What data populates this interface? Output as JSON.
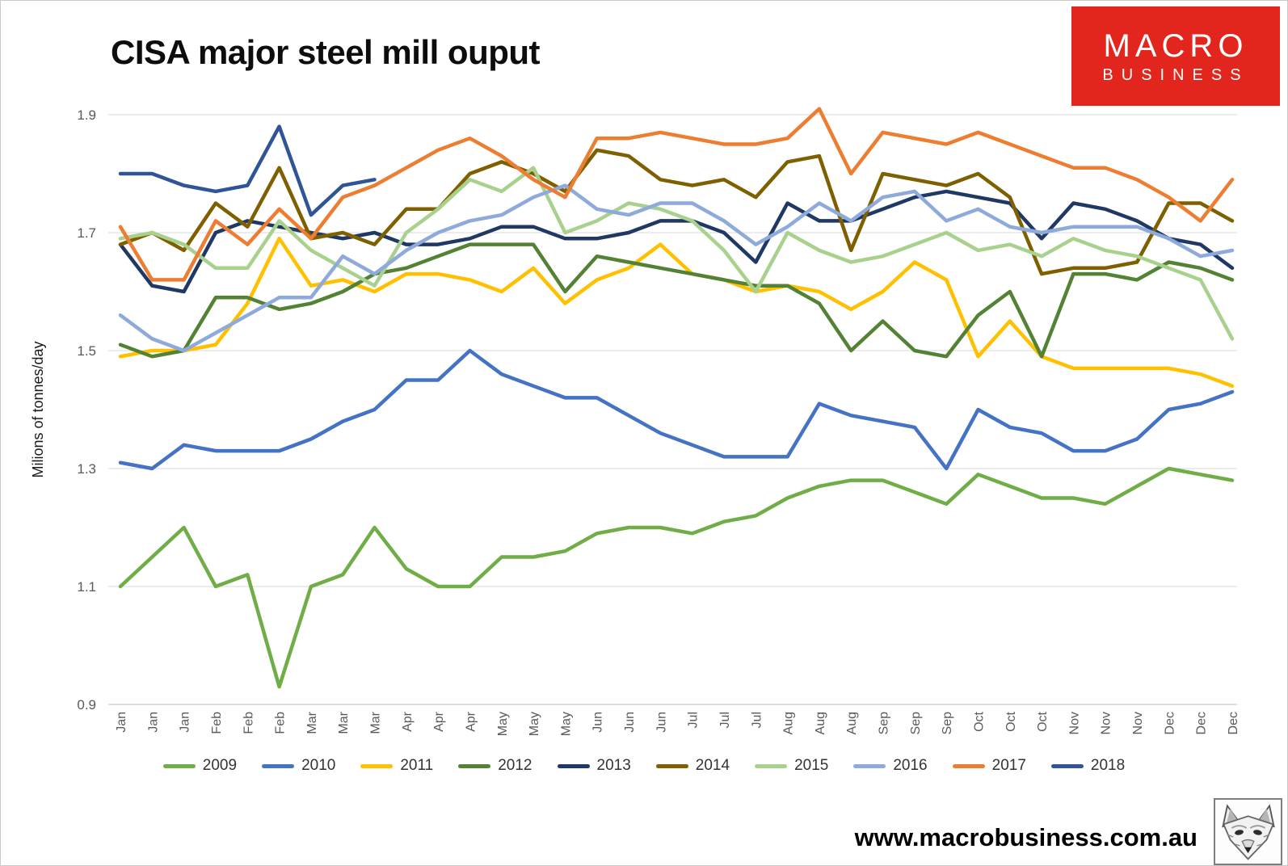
{
  "header": {
    "title": "CISA major steel mill ouput"
  },
  "branding": {
    "logo_line1": "MACRO",
    "logo_line2": "BUSINESS",
    "brand_red": "#E3261D",
    "fox_icon": "fox-sketch-logo"
  },
  "footer": {
    "url": "www.macrobusiness.com.au"
  },
  "chart_data": {
    "type": "line",
    "title": "CISA major steel mill ouput",
    "xlabel": "",
    "ylabel": "Milions of tonnes/day",
    "ylim": [
      0.9,
      1.9
    ],
    "yticks": [
      0.9,
      1.1,
      1.3,
      1.5,
      1.7,
      1.9
    ],
    "grid": true,
    "legend_position": "bottom",
    "x_labels": [
      "Jan",
      "Jan",
      "Jan",
      "Feb",
      "Feb",
      "Feb",
      "Mar",
      "Mar",
      "Mar",
      "Apr",
      "Apr",
      "Apr",
      "May",
      "May",
      "May",
      "Jun",
      "Jun",
      "Jun",
      "Jul",
      "Jul",
      "Jul",
      "Aug",
      "Aug",
      "Aug",
      "Sep",
      "Sep",
      "Sep",
      "Oct",
      "Oct",
      "Oct",
      "Nov",
      "Nov",
      "Nov",
      "Dec",
      "Dec",
      "Dec"
    ],
    "series": [
      {
        "name": "2009",
        "color": "#70AD47",
        "values": [
          1.1,
          1.15,
          1.2,
          1.1,
          1.12,
          0.93,
          1.1,
          1.12,
          1.2,
          1.13,
          1.1,
          1.1,
          1.15,
          1.15,
          1.16,
          1.19,
          1.2,
          1.2,
          1.19,
          1.21,
          1.22,
          1.25,
          1.27,
          1.28,
          1.28,
          1.26,
          1.24,
          1.29,
          1.27,
          1.25,
          1.25,
          1.24,
          1.27,
          1.3,
          1.29,
          1.28
        ]
      },
      {
        "name": "2010",
        "color": "#4472C4",
        "values": [
          1.31,
          1.3,
          1.34,
          1.33,
          1.33,
          1.33,
          1.35,
          1.38,
          1.4,
          1.45,
          1.45,
          1.5,
          1.46,
          1.44,
          1.42,
          1.42,
          1.39,
          1.36,
          1.34,
          1.32,
          1.32,
          1.32,
          1.41,
          1.39,
          1.38,
          1.37,
          1.3,
          1.4,
          1.37,
          1.36,
          1.33,
          1.33,
          1.35,
          1.4,
          1.41,
          1.43
        ]
      },
      {
        "name": "2011",
        "color": "#FFC000",
        "values": [
          1.49,
          1.5,
          1.5,
          1.51,
          1.58,
          1.69,
          1.61,
          1.62,
          1.6,
          1.63,
          1.63,
          1.62,
          1.6,
          1.64,
          1.58,
          1.62,
          1.64,
          1.68,
          1.63,
          1.62,
          1.6,
          1.61,
          1.6,
          1.57,
          1.6,
          1.65,
          1.62,
          1.49,
          1.55,
          1.49,
          1.47,
          1.47,
          1.47,
          1.47,
          1.46,
          1.44
        ]
      },
      {
        "name": "2012",
        "color": "#548235",
        "values": [
          1.51,
          1.49,
          1.5,
          1.59,
          1.59,
          1.57,
          1.58,
          1.6,
          1.63,
          1.64,
          1.66,
          1.68,
          1.68,
          1.68,
          1.6,
          1.66,
          1.65,
          1.64,
          1.63,
          1.62,
          1.61,
          1.61,
          1.58,
          1.5,
          1.55,
          1.5,
          1.49,
          1.56,
          1.6,
          1.49,
          1.63,
          1.63,
          1.62,
          1.65,
          1.64,
          1.62
        ]
      },
      {
        "name": "2013",
        "color": "#203864",
        "values": [
          1.68,
          1.61,
          1.6,
          1.7,
          1.72,
          1.71,
          1.7,
          1.69,
          1.7,
          1.68,
          1.68,
          1.69,
          1.71,
          1.71,
          1.69,
          1.69,
          1.7,
          1.72,
          1.72,
          1.7,
          1.65,
          1.75,
          1.72,
          1.72,
          1.74,
          1.76,
          1.77,
          1.76,
          1.75,
          1.69,
          1.75,
          1.74,
          1.72,
          1.69,
          1.68,
          1.64
        ]
      },
      {
        "name": "2014",
        "color": "#7F6000",
        "values": [
          1.68,
          1.7,
          1.67,
          1.75,
          1.71,
          1.81,
          1.69,
          1.7,
          1.68,
          1.74,
          1.74,
          1.8,
          1.82,
          1.8,
          1.77,
          1.84,
          1.83,
          1.79,
          1.78,
          1.79,
          1.76,
          1.82,
          1.83,
          1.67,
          1.8,
          1.79,
          1.78,
          1.8,
          1.76,
          1.63,
          1.64,
          1.64,
          1.65,
          1.75,
          1.75,
          1.72
        ]
      },
      {
        "name": "2015",
        "color": "#A9D18E",
        "values": [
          1.69,
          1.7,
          1.68,
          1.64,
          1.64,
          1.72,
          1.67,
          1.64,
          1.61,
          1.7,
          1.74,
          1.79,
          1.77,
          1.81,
          1.7,
          1.72,
          1.75,
          1.74,
          1.72,
          1.67,
          1.6,
          1.7,
          1.67,
          1.65,
          1.66,
          1.68,
          1.7,
          1.67,
          1.68,
          1.66,
          1.69,
          1.67,
          1.66,
          1.64,
          1.62,
          1.52
        ]
      },
      {
        "name": "2016",
        "color": "#8EAADB",
        "values": [
          1.56,
          1.52,
          1.5,
          1.53,
          1.56,
          1.59,
          1.59,
          1.66,
          1.63,
          1.67,
          1.7,
          1.72,
          1.73,
          1.76,
          1.78,
          1.74,
          1.73,
          1.75,
          1.75,
          1.72,
          1.68,
          1.71,
          1.75,
          1.72,
          1.76,
          1.77,
          1.72,
          1.74,
          1.71,
          1.7,
          1.71,
          1.71,
          1.71,
          1.69,
          1.66,
          1.67
        ]
      },
      {
        "name": "2017",
        "color": "#ED7D31",
        "values": [
          1.71,
          1.62,
          1.62,
          1.72,
          1.68,
          1.74,
          1.69,
          1.76,
          1.78,
          1.81,
          1.84,
          1.86,
          1.83,
          1.79,
          1.76,
          1.86,
          1.86,
          1.87,
          1.86,
          1.85,
          1.85,
          1.86,
          1.91,
          1.8,
          1.87,
          1.86,
          1.85,
          1.87,
          1.85,
          1.83,
          1.81,
          1.81,
          1.79,
          1.76,
          1.72,
          1.79
        ]
      },
      {
        "name": "2018",
        "color": "#2F5597",
        "values": [
          1.8,
          1.8,
          1.78,
          1.77,
          1.78,
          1.88,
          1.73,
          1.78,
          1.79,
          null,
          null,
          null,
          null,
          null,
          null,
          null,
          null,
          null,
          null,
          null,
          null,
          null,
          null,
          null,
          null,
          null,
          null,
          null,
          null,
          null,
          null,
          null,
          null,
          null,
          null,
          null
        ]
      }
    ]
  }
}
